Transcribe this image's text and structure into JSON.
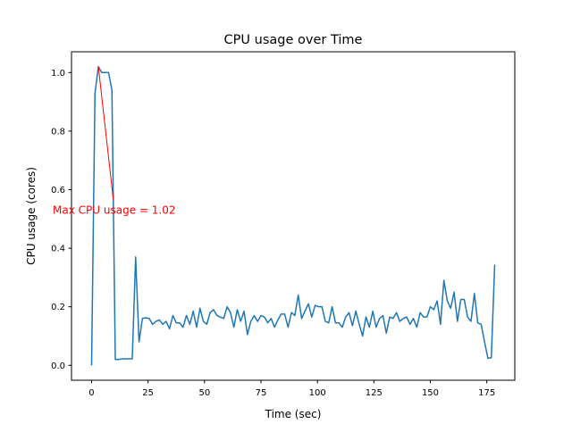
{
  "chart_data": {
    "type": "line",
    "title": "CPU usage over Time",
    "xlabel": "Time (sec)",
    "ylabel": "CPU usage (cores)",
    "xlim": [
      -8.9,
      187.4
    ],
    "ylim": [
      -0.051,
      1.071
    ],
    "xticks": [
      0,
      25,
      50,
      75,
      100,
      125,
      150,
      175
    ],
    "xtick_labels": [
      "0",
      "25",
      "50",
      "75",
      "100",
      "125",
      "150",
      "175"
    ],
    "yticks": [
      0.0,
      0.2,
      0.4,
      0.6,
      0.8,
      1.0
    ],
    "ytick_labels": [
      "0.0",
      "0.2",
      "0.4",
      "0.6",
      "0.8",
      "1.0"
    ],
    "grid": false,
    "line_color": "#1f77b4",
    "x_step": 1.5,
    "series": [
      {
        "values": [
          0,
          0.93,
          1.02,
          1.0,
          1.0,
          1.0,
          0.94,
          0.02,
          0.02,
          0.022,
          0.022,
          0.022,
          0.022,
          0.37,
          0.08,
          0.16,
          0.162,
          0.16,
          0.14,
          0.15,
          0.155,
          0.14,
          0.15,
          0.125,
          0.17,
          0.145,
          0.145,
          0.13,
          0.17,
          0.14,
          0.185,
          0.13,
          0.195,
          0.15,
          0.14,
          0.18,
          0.19,
          0.17,
          0.165,
          0.16,
          0.2,
          0.18,
          0.13,
          0.19,
          0.15,
          0.185,
          0.105,
          0.15,
          0.17,
          0.15,
          0.17,
          0.165,
          0.145,
          0.16,
          0.13,
          0.155,
          0.175,
          0.175,
          0.13,
          0.18,
          0.17,
          0.24,
          0.16,
          0.185,
          0.21,
          0.165,
          0.205,
          0.2,
          0.2,
          0.15,
          0.145,
          0.2,
          0.145,
          0.145,
          0.13,
          0.165,
          0.18,
          0.135,
          0.185,
          0.14,
          0.1,
          0.165,
          0.13,
          0.185,
          0.13,
          0.16,
          0.17,
          0.11,
          0.165,
          0.16,
          0.18,
          0.15,
          0.16,
          0.165,
          0.14,
          0.16,
          0.13,
          0.18,
          0.165,
          0.165,
          0.2,
          0.19,
          0.22,
          0.14,
          0.29,
          0.22,
          0.195,
          0.25,
          0.15,
          0.225,
          0.225,
          0.165,
          0.15,
          0.245,
          0.145,
          0.14,
          0.08,
          0.024,
          0.026,
          0.344
        ]
      }
    ],
    "annotation": {
      "text": "Max CPU usage = 1.02",
      "color": "#ff0000",
      "xy": [
        3,
        1.02
      ],
      "xytext": [
        10,
        0.53
      ]
    }
  }
}
